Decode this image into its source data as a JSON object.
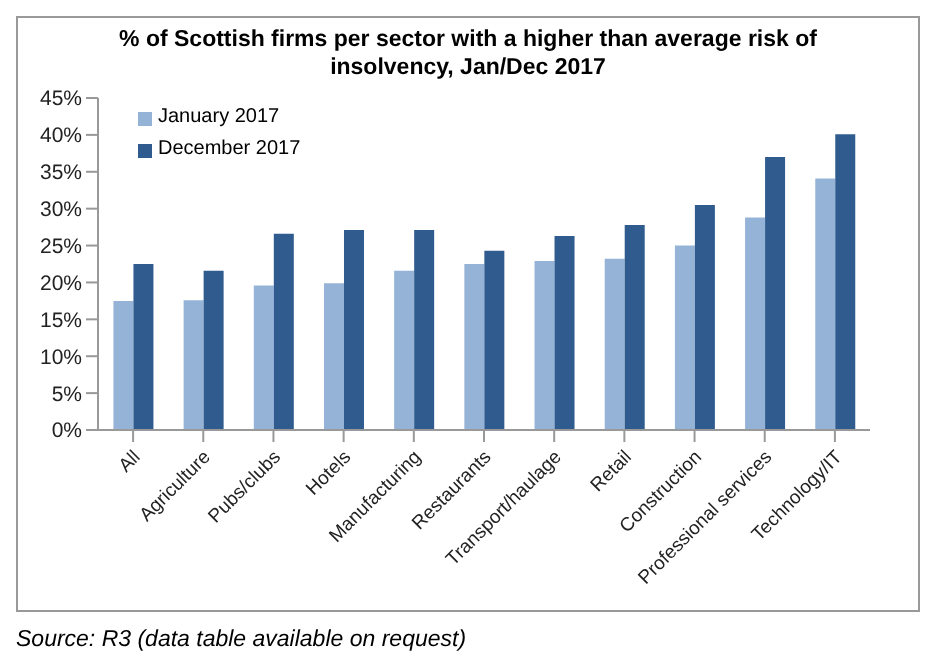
{
  "chart_data": {
    "type": "bar",
    "title": "% of Scottish firms per sector with a higher than average risk of insolvency, Jan/Dec 2017",
    "categories": [
      "All",
      "Agriculture",
      "Pubs/clubs",
      "Hotels",
      "Manufacturing",
      "Restaurants",
      "Transport/haulage",
      "Retail",
      "Construction",
      "Professional services",
      "Technology/IT"
    ],
    "series": [
      {
        "name": "January 2017",
        "color": "#95b3d7",
        "values": [
          17.5,
          17.6,
          19.6,
          19.9,
          21.6,
          22.5,
          22.9,
          23.2,
          25.0,
          28.8,
          34.1
        ]
      },
      {
        "name": "December 2017",
        "color": "#2f5b8f",
        "values": [
          22.5,
          21.6,
          26.6,
          27.1,
          27.1,
          24.3,
          26.3,
          27.8,
          30.5,
          37.0,
          40.1
        ]
      }
    ],
    "ylim": [
      0,
      45
    ],
    "yticks": [
      {
        "value": 0,
        "label": "0%"
      },
      {
        "value": 5,
        "label": "5%"
      },
      {
        "value": 10,
        "label": "10%"
      },
      {
        "value": 15,
        "label": "15%"
      },
      {
        "value": 20,
        "label": "20%"
      },
      {
        "value": 25,
        "label": "25%"
      },
      {
        "value": 30,
        "label": "30%"
      },
      {
        "value": 35,
        "label": "35%"
      },
      {
        "value": 40,
        "label": "40%"
      },
      {
        "value": 45,
        "label": "45%"
      }
    ],
    "grid": false,
    "legend": "top left",
    "annotations": [
      "Source: R3 (data table available on request)"
    ]
  }
}
